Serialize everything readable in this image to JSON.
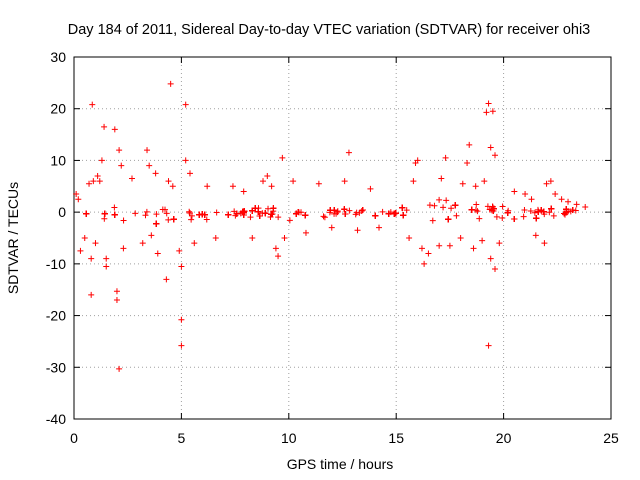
{
  "chart_data": {
    "type": "scatter",
    "title": "Day 184 of 2011, Sidereal Day-to-day VTEC variation (SDTVAR) for receiver ohi3",
    "xlabel": "GPS time / hours",
    "ylabel": "SDTVAR / TECUs",
    "xlim": [
      0,
      25
    ],
    "ylim": [
      -40,
      30
    ],
    "xticks": [
      0,
      5,
      10,
      15,
      20,
      25
    ],
    "yticks": [
      -40,
      -30,
      -20,
      -10,
      0,
      10,
      20,
      30
    ],
    "grid": true,
    "marker": "+",
    "color": "#ff0000",
    "series": [
      {
        "name": "SDTVAR",
        "band": [
          [
            0.0,
            -2.0,
            1.0
          ],
          [
            0.5,
            -3.0,
            1.5
          ],
          [
            1.0,
            -3.5,
            2.0
          ],
          [
            1.5,
            -3.0,
            2.0
          ],
          [
            2.0,
            -3.0,
            1.5
          ],
          [
            2.5,
            -2.5,
            1.5
          ],
          [
            3.0,
            -2.5,
            1.5
          ],
          [
            3.5,
            -3.0,
            2.5
          ],
          [
            4.0,
            -3.0,
            3.0
          ],
          [
            4.5,
            -3.5,
            2.5
          ],
          [
            5.0,
            -4.0,
            3.0
          ],
          [
            5.5,
            -3.0,
            2.0
          ],
          [
            6.0,
            -2.5,
            1.5
          ],
          [
            7.0,
            -2.0,
            1.2
          ],
          [
            8.0,
            -2.0,
            1.5
          ],
          [
            9.0,
            -2.0,
            1.5
          ],
          [
            9.5,
            -3.0,
            2.0
          ],
          [
            10.0,
            -2.5,
            1.5
          ],
          [
            11.0,
            -1.5,
            1.0
          ],
          [
            12.0,
            -1.5,
            1.0
          ],
          [
            13.0,
            -1.5,
            1.0
          ],
          [
            13.5,
            -2.0,
            1.0
          ],
          [
            14.0,
            -2.5,
            2.5
          ],
          [
            14.5,
            -2.0,
            1.0
          ],
          [
            15.0,
            -1.5,
            1.5
          ],
          [
            15.5,
            -3.0,
            2.5
          ],
          [
            16.0,
            -4.0,
            3.0
          ],
          [
            16.5,
            -4.5,
            3.5
          ],
          [
            17.0,
            -5.0,
            5.0
          ],
          [
            17.5,
            -4.5,
            4.0
          ],
          [
            18.0,
            -4.0,
            3.5
          ],
          [
            18.5,
            -3.5,
            3.0
          ],
          [
            19.0,
            -3.5,
            3.0
          ],
          [
            19.5,
            -3.0,
            2.5
          ],
          [
            20.0,
            -2.5,
            2.0
          ],
          [
            21.0,
            -2.0,
            1.5
          ],
          [
            22.0,
            -1.5,
            1.0
          ],
          [
            23.0,
            -1.0,
            1.0
          ],
          [
            23.8,
            -1.0,
            1.0
          ]
        ],
        "outliers": [
          [
            0.1,
            3.5
          ],
          [
            0.2,
            2.5
          ],
          [
            0.3,
            -7.5
          ],
          [
            0.5,
            -5.0
          ],
          [
            0.7,
            5.5
          ],
          [
            0.8,
            -9.0
          ],
          [
            0.8,
            -16.0
          ],
          [
            0.85,
            20.8
          ],
          [
            0.9,
            6.0
          ],
          [
            1.0,
            -6.0
          ],
          [
            1.1,
            7.0
          ],
          [
            1.2,
            6.0
          ],
          [
            1.3,
            10.0
          ],
          [
            1.4,
            16.5
          ],
          [
            1.5,
            -9.0
          ],
          [
            1.5,
            -10.5
          ],
          [
            1.9,
            16.0
          ],
          [
            2.0,
            -15.3
          ],
          [
            2.0,
            -17.0
          ],
          [
            2.1,
            -30.3
          ],
          [
            2.1,
            12.0
          ],
          [
            2.2,
            9.0
          ],
          [
            2.3,
            -7.0
          ],
          [
            2.7,
            6.5
          ],
          [
            3.2,
            -6.0
          ],
          [
            3.4,
            12.0
          ],
          [
            3.5,
            9.0
          ],
          [
            3.6,
            -4.5
          ],
          [
            3.8,
            7.5
          ],
          [
            3.9,
            -8.0
          ],
          [
            4.3,
            -13.0
          ],
          [
            4.4,
            6.0
          ],
          [
            4.5,
            24.8
          ],
          [
            4.6,
            5.0
          ],
          [
            4.9,
            -7.5
          ],
          [
            5.0,
            -10.5
          ],
          [
            5.0,
            -20.8
          ],
          [
            5.0,
            -25.8
          ],
          [
            5.2,
            20.8
          ],
          [
            5.2,
            10.0
          ],
          [
            5.4,
            7.5
          ],
          [
            5.6,
            -6.0
          ],
          [
            6.2,
            5.0
          ],
          [
            6.6,
            -5.0
          ],
          [
            7.4,
            5.0
          ],
          [
            7.9,
            4.0
          ],
          [
            8.3,
            -5.0
          ],
          [
            8.8,
            6.0
          ],
          [
            9.0,
            7.0
          ],
          [
            9.2,
            5.0
          ],
          [
            9.4,
            -7.0
          ],
          [
            9.5,
            -8.5
          ],
          [
            9.7,
            10.5
          ],
          [
            9.8,
            -5.0
          ],
          [
            10.2,
            6.0
          ],
          [
            10.8,
            -4.0
          ],
          [
            11.4,
            5.5
          ],
          [
            12.0,
            -3.0
          ],
          [
            12.6,
            6.0
          ],
          [
            12.8,
            11.5
          ],
          [
            13.2,
            -3.5
          ],
          [
            13.8,
            4.5
          ],
          [
            14.2,
            -3.0
          ],
          [
            15.6,
            -5.0
          ],
          [
            15.8,
            6.0
          ],
          [
            15.9,
            9.5
          ],
          [
            16.0,
            10.0
          ],
          [
            16.2,
            -7.0
          ],
          [
            16.3,
            -10.0
          ],
          [
            16.5,
            -8.0
          ],
          [
            17.0,
            -6.5
          ],
          [
            17.1,
            6.5
          ],
          [
            17.3,
            10.5
          ],
          [
            17.5,
            -6.5
          ],
          [
            18.0,
            -5.0
          ],
          [
            18.1,
            5.5
          ],
          [
            18.3,
            9.5
          ],
          [
            18.4,
            13.0
          ],
          [
            18.6,
            -7.0
          ],
          [
            18.7,
            5.0
          ],
          [
            19.0,
            -5.5
          ],
          [
            19.1,
            6.0
          ],
          [
            19.2,
            19.3
          ],
          [
            19.3,
            21.0
          ],
          [
            19.3,
            -25.8
          ],
          [
            19.4,
            12.5
          ],
          [
            19.4,
            -9.0
          ],
          [
            19.5,
            19.5
          ],
          [
            19.6,
            11.0
          ],
          [
            19.6,
            -11.0
          ],
          [
            19.8,
            -6.0
          ],
          [
            20.5,
            4.0
          ],
          [
            21.0,
            3.5
          ],
          [
            21.3,
            2.5
          ],
          [
            21.5,
            -4.5
          ],
          [
            21.9,
            -6.0
          ],
          [
            22.0,
            5.5
          ],
          [
            22.2,
            6.0
          ],
          [
            22.4,
            3.5
          ],
          [
            22.7,
            2.5
          ],
          [
            23.0,
            2.0
          ],
          [
            23.4,
            1.5
          ],
          [
            23.8,
            1.0
          ]
        ]
      }
    ]
  }
}
